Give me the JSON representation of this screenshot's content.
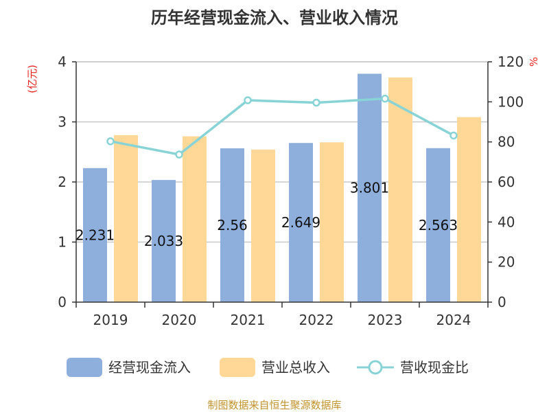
{
  "chart_data": {
    "type": "bar",
    "title": "历年经营现金流入、营业收入情况",
    "categories": [
      "2019",
      "2020",
      "2021",
      "2022",
      "2023",
      "2024"
    ],
    "y_left": {
      "unit_label": "(亿元)",
      "ylim": [
        0,
        4
      ],
      "ticks": [
        "0",
        "1",
        "2",
        "3",
        "4"
      ]
    },
    "y_right": {
      "unit_label": "%",
      "ylim": [
        0,
        120
      ],
      "ticks": [
        "0",
        "20",
        "40",
        "60",
        "80",
        "100",
        "120"
      ]
    },
    "series": [
      {
        "name": "经营现金流入",
        "type": "bar",
        "axis": "left",
        "color": "#8eaedb",
        "values": [
          2.231,
          2.033,
          2.56,
          2.649,
          3.801,
          2.563
        ],
        "labels": [
          "2.231",
          "2.033",
          "2.56",
          "2.649",
          "3.801",
          "2.563"
        ]
      },
      {
        "name": "营业总收入",
        "type": "bar",
        "axis": "left",
        "color": "#ffd897",
        "values": [
          2.78,
          2.76,
          2.54,
          2.66,
          3.74,
          3.08
        ]
      },
      {
        "name": "营收现金比",
        "type": "line",
        "axis": "right",
        "color": "#87d3d6",
        "values": [
          80.3,
          73.7,
          100.8,
          99.6,
          101.6,
          83.2
        ]
      }
    ],
    "grid": true,
    "legend_position": "bottom"
  },
  "source": "制图数据来自恒生聚源数据库"
}
